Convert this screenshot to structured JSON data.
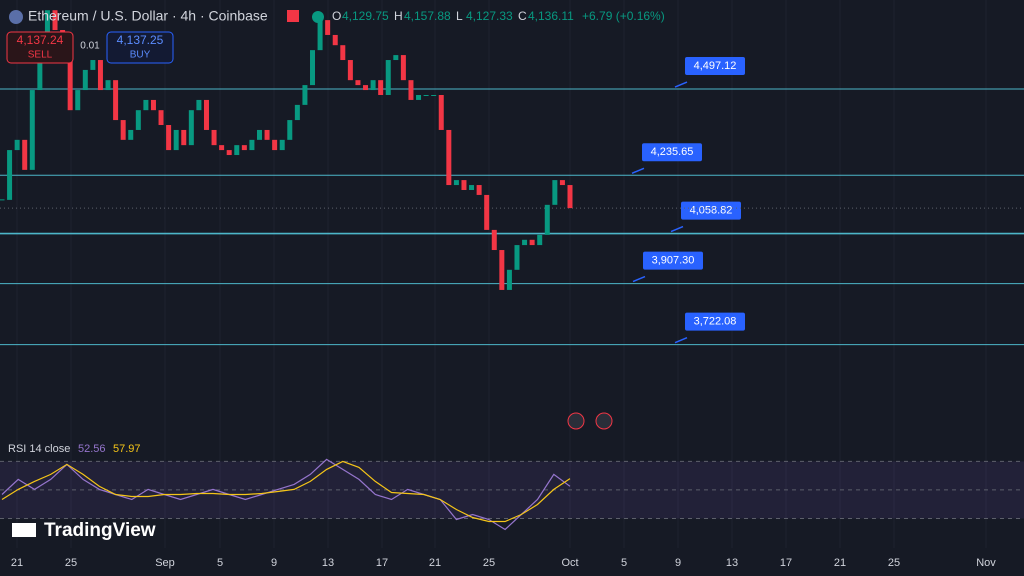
{
  "header": {
    "symbol": "Ethereum / U.S. Dollar · 4h · Coinbase",
    "ohlc": [
      {
        "key": "O",
        "value": "4,129.75"
      },
      {
        "key": "H",
        "value": "4,157.88"
      },
      {
        "key": "L",
        "value": "4,127.33"
      },
      {
        "key": "C",
        "value": "4,136.11"
      }
    ],
    "change": "+6.79 (+0.16%)"
  },
  "trade": {
    "sell_price": "4,137.24",
    "sell": "SELL",
    "spread": "0.01",
    "buy_price": "4,137.25",
    "buy": "BUY"
  },
  "chart_data": {
    "type": "candlestick",
    "ylim": [
      3524,
      4767
    ],
    "closes": [
      4161,
      4312,
      4343,
      4252,
      4494,
      4646,
      4736,
      4676,
      4615,
      4433,
      4494,
      4555,
      4585,
      4494,
      4524,
      4403,
      4343,
      4373,
      4433,
      4464,
      4433,
      4388,
      4312,
      4373,
      4327,
      4433,
      4464,
      4373,
      4327,
      4312,
      4297,
      4327,
      4312,
      4343,
      4373,
      4343,
      4312,
      4343,
      4403,
      4449,
      4509,
      4615,
      4706,
      4661,
      4630,
      4585,
      4524,
      4509,
      4494,
      4524,
      4479,
      4585,
      4600,
      4524,
      4464,
      4479,
      4479,
      4479,
      4373,
      4206,
      4221,
      4191,
      4206,
      4176,
      4070,
      4009,
      3888,
      3949,
      4024,
      4040,
      4024,
      4055,
      4146,
      4221,
      4206,
      4136.11
    ],
    "up_color": "#089981",
    "down_color": "#f23645",
    "level_color": "#4cb6c9",
    "levels": [
      {
        "value": 4497.12,
        "label": "4,497.12"
      },
      {
        "value": 4235.65,
        "label": "4,235.65"
      },
      {
        "value": 4058.82,
        "label": "4,058.82"
      },
      {
        "value": 3907.3,
        "label": "3,907.30"
      },
      {
        "value": 3722.08,
        "label": "3,722.08"
      }
    ],
    "x_labels": [
      "21",
      "25",
      "Sep",
      "5",
      "9",
      "13",
      "17",
      "21",
      "25",
      "Oct",
      "5",
      "9",
      "13",
      "17",
      "21",
      "25",
      "Nov"
    ]
  },
  "rsi": {
    "type": "line",
    "title": "RSI 14 close",
    "value_label": "52.56",
    "ma_label": "57.97",
    "ylim": [
      10,
      85
    ],
    "bands": [
      70,
      50,
      30
    ],
    "color": "#9575cd",
    "ma_color": "#f5c518",
    "values": [
      46.8,
      57.4,
      50.4,
      57.4,
      67.9,
      57.4,
      50.4,
      46.8,
      43.3,
      50.4,
      46.8,
      43.3,
      46.8,
      50.4,
      46.8,
      43.3,
      46.8,
      50.4,
      53.9,
      60.9,
      71.4,
      64.4,
      57.4,
      46.8,
      43.3,
      50.4,
      46.8,
      43.3,
      29.3,
      32.8,
      29.3,
      22.3,
      32.8,
      43.3,
      60.9,
      52.56
    ],
    "ma": [
      43.3,
      50.4,
      56.0,
      60.9,
      67.9,
      60.9,
      52.5,
      46.8,
      45.4,
      45.4,
      46.8,
      46.8,
      47.5,
      47.5,
      46.8,
      46.8,
      47.5,
      48.9,
      50.4,
      56.0,
      64.4,
      70.0,
      65.8,
      56.0,
      48.2,
      47.5,
      46.8,
      43.3,
      36.3,
      30.7,
      27.9,
      27.9,
      32.8,
      39.8,
      50.4,
      57.97
    ]
  },
  "brand": "TradingView"
}
